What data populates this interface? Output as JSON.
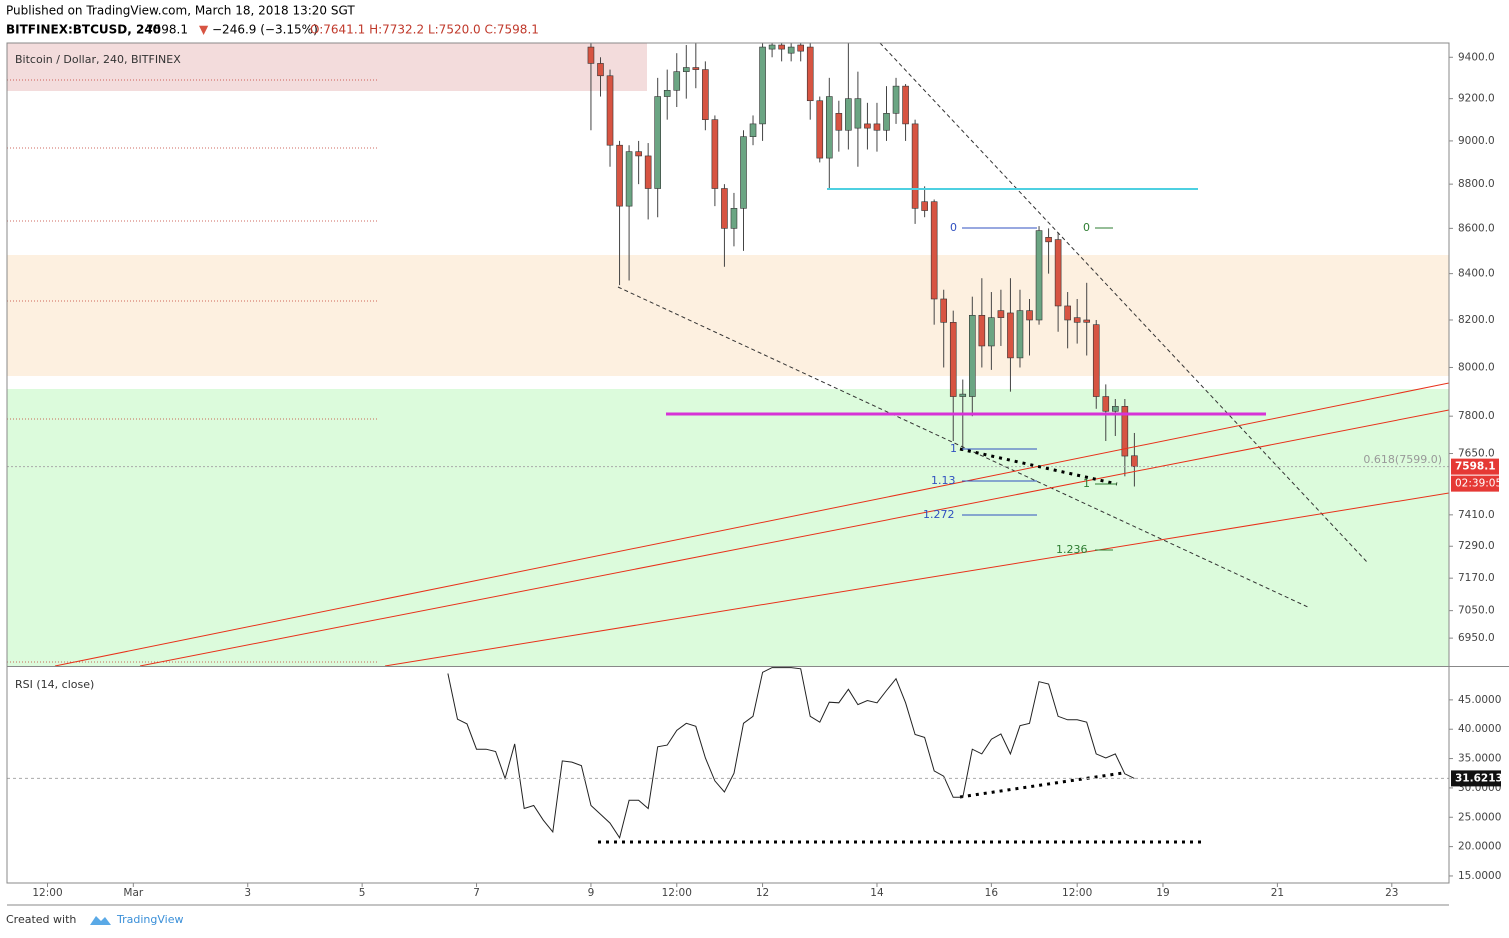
{
  "header": {
    "published": "Published on TradingView.com, March 18, 2018 13:20 SGT",
    "symbol": "BITFINEX:BTCUSD, 240",
    "last": "7598.1",
    "change": "−246.9 (−3.15%)",
    "ohlc": "O:7641.1 H:7732.2 L:7520.0 C:7598.1"
  },
  "footer": {
    "created": "Created with",
    "brand": "TradingView"
  },
  "chart_data": [
    {
      "type": "candlestick",
      "title": "Bitcoin / Dollar, 240, BITFINEX",
      "log_scale": true,
      "up_color": "#6ba583",
      "down_color": "#d75442",
      "xlim": [
        -53,
        552
      ],
      "ylim": [
        6850,
        9470
      ],
      "xticks": [
        {
          "value": -36,
          "label": "12:00"
        },
        {
          "value": 0,
          "label": "Mar"
        },
        {
          "value": 48,
          "label": "3"
        },
        {
          "value": 96,
          "label": "5"
        },
        {
          "value": 144,
          "label": "7"
        },
        {
          "value": 192,
          "label": "9"
        },
        {
          "value": 228,
          "label": "12:00"
        },
        {
          "value": 264,
          "label": "12"
        },
        {
          "value": 312,
          "label": "14"
        },
        {
          "value": 360,
          "label": "16"
        },
        {
          "value": 396,
          "label": "12:00"
        },
        {
          "value": 432,
          "label": "19"
        },
        {
          "value": 480,
          "label": "21"
        },
        {
          "value": 528,
          "label": "23"
        }
      ],
      "yticks": [
        {
          "value": 6950,
          "label": "6950.0"
        },
        {
          "value": 7050,
          "label": "7050.0"
        },
        {
          "value": 7170,
          "label": "7170.0"
        },
        {
          "value": 7290,
          "label": "7290.0"
        },
        {
          "value": 7410,
          "label": "7410.0"
        },
        {
          "value": 7650,
          "label": "7650.0"
        },
        {
          "value": 7800,
          "label": "7800.0"
        },
        {
          "value": 8000,
          "label": "8000.0"
        },
        {
          "value": 8200,
          "label": "8200.0"
        },
        {
          "value": 8400,
          "label": "8400.0"
        },
        {
          "value": 8600,
          "label": "8600.0"
        },
        {
          "value": 8800,
          "label": "8800.0"
        },
        {
          "value": 9000,
          "label": "9000.0"
        },
        {
          "value": 9200,
          "label": "9200.0"
        },
        {
          "value": 9400,
          "label": "9400.0"
        }
      ],
      "x": [
        192,
        196,
        200,
        204,
        208,
        212,
        216,
        220,
        224,
        228,
        232,
        236,
        240,
        244,
        248,
        252,
        256,
        260,
        264,
        268,
        272,
        276,
        280,
        284,
        288,
        292,
        296,
        300,
        304,
        308,
        312,
        316,
        320,
        324,
        328,
        332,
        336,
        340,
        344,
        348,
        352,
        356,
        360,
        364,
        368,
        372,
        376,
        380,
        384,
        388,
        392,
        396,
        400,
        404,
        408,
        412,
        416,
        420
      ],
      "open": [
        9450,
        9370,
        9310,
        8980,
        8700,
        8950,
        8930,
        8780,
        9210,
        9240,
        9330,
        9350,
        9340,
        9100,
        8780,
        8600,
        8690,
        9020,
        9080,
        9440,
        9460,
        9420,
        9460,
        9450,
        9190,
        8920,
        9130,
        9050,
        9060,
        9080,
        9080,
        9050,
        9130,
        9260,
        9080,
        8720,
        8720,
        8290,
        8190,
        7880,
        7880,
        8220,
        8090,
        8240,
        8230,
        8040,
        8240,
        8200,
        8560,
        8550,
        8260,
        8210,
        8200,
        8180,
        7880,
        7820,
        7840,
        7641.1
      ],
      "high": [
        9470,
        9400,
        9340,
        9000,
        8980,
        9000,
        8990,
        9300,
        9340,
        9420,
        9460,
        9470,
        9380,
        9120,
        8800,
        8760,
        9050,
        9120,
        9470,
        9470,
        9470,
        9470,
        9470,
        9470,
        9210,
        9300,
        9190,
        9470,
        9330,
        9180,
        9180,
        9260,
        9300,
        9270,
        9100,
        8790,
        8730,
        8330,
        8240,
        7950,
        8300,
        8380,
        8320,
        8330,
        8380,
        8330,
        8290,
        8610,
        8600,
        8580,
        8320,
        8290,
        8360,
        8200,
        7930,
        7870,
        7870,
        7732.2
      ],
      "low": [
        9050,
        9210,
        8880,
        8350,
        8370,
        8800,
        8640,
        8650,
        9100,
        9160,
        9200,
        9250,
        9050,
        8700,
        8430,
        8520,
        8500,
        8980,
        9000,
        9400,
        9380,
        9380,
        9380,
        9100,
        8900,
        8780,
        8950,
        8960,
        8880,
        8960,
        8950,
        9000,
        9080,
        9000,
        8620,
        8650,
        8180,
        8000,
        7700,
        7660,
        7800,
        8000,
        7990,
        8090,
        7900,
        8000,
        8050,
        8180,
        8400,
        8150,
        8080,
        8100,
        8050,
        7830,
        7700,
        7720,
        7560,
        7520.0
      ],
      "close": [
        9370,
        9310,
        8980,
        8700,
        8950,
        8930,
        8780,
        9210,
        9240,
        9330,
        9350,
        9340,
        9100,
        8780,
        8600,
        8690,
        9020,
        9080,
        9450,
        9460,
        9440,
        9450,
        9430,
        9190,
        8920,
        9210,
        9050,
        9200,
        9200,
        9060,
        9050,
        9130,
        9260,
        9080,
        8690,
        8680,
        8290,
        8190,
        7880,
        7890,
        8220,
        8090,
        8210,
        8210,
        8040,
        8240,
        8200,
        8590,
        8540,
        8260,
        8200,
        8190,
        8190,
        7880,
        7820,
        7840,
        7640,
        7598.1
      ],
      "last_price": 7598.1,
      "countdown": "02:39:05",
      "fib_note": "0.618(7599.0)",
      "fib_labels": [
        "0",
        "1",
        "1.13",
        "1.272",
        "0",
        "1",
        "1.236"
      ]
    },
    {
      "type": "line",
      "title": "RSI (14, close)",
      "color": "#222",
      "xlim": [
        -53,
        552
      ],
      "ylim": [
        13.8,
        50.6
      ],
      "yticks": [
        {
          "value": 15,
          "label": "15.0000"
        },
        {
          "value": 20,
          "label": "20.0000"
        },
        {
          "value": 25,
          "label": "25.0000"
        },
        {
          "value": 30,
          "label": "30.0000"
        },
        {
          "value": 35,
          "label": "35.0000"
        },
        {
          "value": 40,
          "label": "40.0000"
        },
        {
          "value": 45,
          "label": "45.0000"
        }
      ],
      "x": [
        132,
        136,
        140,
        144,
        148,
        152,
        156,
        160,
        164,
        168,
        172,
        176,
        180,
        184,
        188,
        192,
        196,
        200,
        204,
        208,
        212,
        216,
        220,
        224,
        228,
        232,
        236,
        240,
        244,
        248,
        252,
        256,
        260,
        264,
        268,
        272,
        276,
        280,
        284,
        288,
        292,
        296,
        300,
        304,
        308,
        312,
        316,
        320,
        324,
        328,
        332,
        336,
        340,
        344,
        348,
        352,
        356,
        360,
        364,
        368,
        372,
        376,
        380,
        384,
        388,
        392,
        396,
        400,
        404,
        408,
        412,
        416,
        420
      ],
      "values": [
        49.5,
        41.7,
        40.9,
        36.6,
        36.6,
        36.2,
        31.6,
        37.5,
        26.5,
        27.0,
        24.5,
        22.5,
        34.6,
        34.4,
        33.8,
        27.0,
        25.5,
        24.0,
        21.5,
        27.9,
        27.9,
        26.5,
        37.0,
        37.3,
        39.8,
        41.0,
        40.5,
        35.1,
        31.2,
        29.3,
        32.5,
        41.0,
        42.2,
        49.7,
        50.5,
        50.5,
        50.5,
        50.3,
        42.2,
        41.2,
        44.6,
        44.5,
        46.8,
        44.2,
        44.9,
        44.5,
        46.6,
        48.6,
        44.5,
        39.1,
        38.6,
        32.9,
        32.0,
        28.4,
        28.4,
        36.6,
        35.8,
        38.3,
        39.2,
        35.8,
        40.6,
        41.0,
        48.1,
        47.7,
        42.2,
        41.6,
        41.6,
        41.2,
        35.8,
        35.1,
        35.8,
        32.4,
        31.62
      ],
      "last_value": 31.6213
    }
  ]
}
